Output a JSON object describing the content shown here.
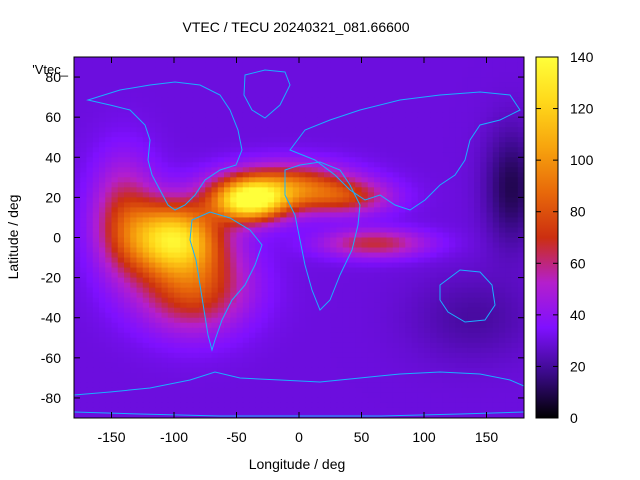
{
  "chart_data": {
    "type": "heatmap",
    "title": "VTEC / TECU 20240321_081.66600",
    "xlabel": "Longitude / deg",
    "ylabel": "Latitude / deg",
    "xlim": [
      -180,
      180
    ],
    "ylim": [
      -90,
      90
    ],
    "xticks": [
      -150,
      -100,
      -50,
      0,
      50,
      100,
      150
    ],
    "yticks": [
      -80,
      -60,
      -40,
      -20,
      0,
      20,
      40,
      60,
      80
    ],
    "xtick_labels": [
      "-150",
      "-100",
      "-50",
      "0",
      "50",
      "100",
      "150"
    ],
    "ytick_labels": [
      "-80",
      "-60",
      "-40",
      "-20",
      "0",
      "20",
      "40",
      "60",
      "80"
    ],
    "legend_label": "'Vtec_",
    "colorbar": {
      "range": [
        0,
        140
      ],
      "ticks": [
        0,
        20,
        40,
        60,
        80,
        100,
        120,
        140
      ],
      "tick_labels": [
        "0",
        "20",
        "40",
        "60",
        "80",
        "100",
        "120",
        "140"
      ],
      "palette": [
        "#000000",
        "#3b0a8a",
        "#7f10ff",
        "#b41fcc",
        "#cc2f10",
        "#e8690a",
        "#f7a40e",
        "#ffd81a",
        "#ffff3a"
      ]
    },
    "grid_resolution_deg": [
      5,
      2.5
    ],
    "background_value": 30,
    "features": [
      {
        "name": "equatorial-peak-south-america",
        "lon": -100,
        "lat": 0,
        "value": 132,
        "sigma_lon": 25,
        "sigma_lat": 12
      },
      {
        "name": "peak-north-atlantic",
        "lon": -40,
        "lat": 18,
        "value": 138,
        "sigma_lon": 20,
        "sigma_lat": 7
      },
      {
        "name": "southern-crest",
        "lon": -85,
        "lat": -25,
        "value": 85,
        "sigma_lon": 30,
        "sigma_lat": 15
      },
      {
        "name": "western-lobe",
        "lon": -140,
        "lat": 10,
        "value": 70,
        "sigma_lon": 18,
        "sigma_lat": 20
      },
      {
        "name": "northern-atlantic-band",
        "lon": -10,
        "lat": 25,
        "value": 95,
        "sigma_lon": 35,
        "sigma_lat": 8
      },
      {
        "name": "indian-ocean-band",
        "lon": 60,
        "lat": -3,
        "value": 70,
        "sigma_lon": 30,
        "sigma_lat": 5
      },
      {
        "name": "africa-north-band",
        "lon": 40,
        "lat": 20,
        "value": 65,
        "sigma_lon": 25,
        "sigma_lat": 6
      },
      {
        "name": "eastern-minimum",
        "lon": 170,
        "lat": 25,
        "value": 8,
        "sigma_lon": 15,
        "sigma_lat": 20
      },
      {
        "name": "south-pacific-minimum",
        "lon": 140,
        "lat": -40,
        "value": 20,
        "sigma_lon": 35,
        "sigma_lat": 15
      }
    ]
  }
}
